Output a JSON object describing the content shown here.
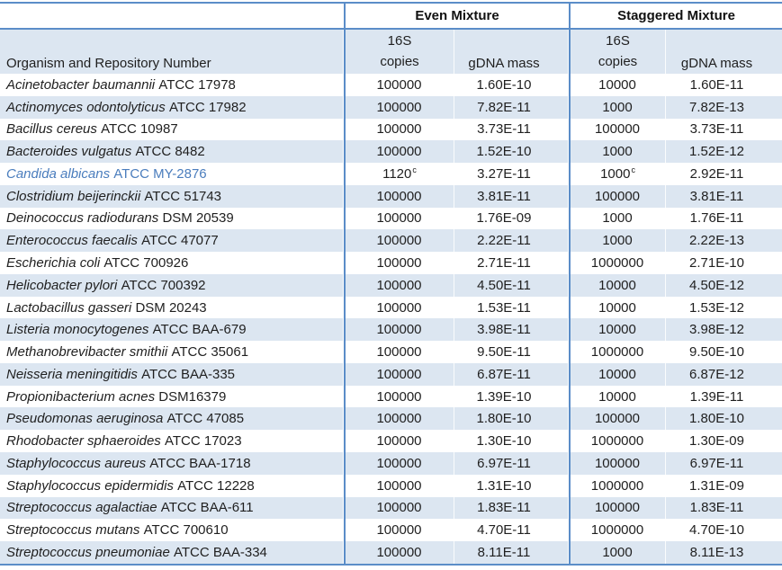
{
  "colors": {
    "border_blue": "#5b8dc8",
    "shaded_row": "#dce6f1",
    "highlight_text_blue": "#4a7dbd",
    "text": "#1f1f1f"
  },
  "table": {
    "group_headers": {
      "even": "Even Mixture",
      "staggered": "Staggered Mixture"
    },
    "column_headers": {
      "organism": "Organism and Repository Number",
      "copies_top": "16S",
      "copies_bottom": "copies",
      "gdna_mass": "gDNA mass"
    },
    "rows": [
      {
        "name_italic": "Acinetobacter baumannii",
        "name_rest": "ATCC 17978",
        "even_copies": "100000",
        "even_sup": "",
        "even_gdna": "1.60E-10",
        "stag_copies": "10000",
        "stag_sup": "",
        "stag_gdna": "1.60E-11",
        "blue": false
      },
      {
        "name_italic": "Actinomyces odontolyticus",
        "name_rest": "ATCC 17982",
        "even_copies": "100000",
        "even_sup": "",
        "even_gdna": "7.82E-11",
        "stag_copies": "1000",
        "stag_sup": "",
        "stag_gdna": "7.82E-13",
        "blue": false
      },
      {
        "name_italic": "Bacillus cereus",
        "name_rest": "ATCC 10987",
        "even_copies": "100000",
        "even_sup": "",
        "even_gdna": "3.73E-11",
        "stag_copies": "100000",
        "stag_sup": "",
        "stag_gdna": "3.73E-11",
        "blue": false
      },
      {
        "name_italic": "Bacteroides vulgatus",
        "name_rest": "ATCC 8482",
        "even_copies": "100000",
        "even_sup": "",
        "even_gdna": "1.52E-10",
        "stag_copies": "1000",
        "stag_sup": "",
        "stag_gdna": "1.52E-12",
        "blue": false
      },
      {
        "name_italic": "Candida albicans",
        "name_rest": "ATCC MY-2876",
        "even_copies": "1120",
        "even_sup": "c",
        "even_gdna": "3.27E-11",
        "stag_copies": "1000",
        "stag_sup": "c",
        "stag_gdna": "2.92E-11",
        "blue": true
      },
      {
        "name_italic": "Clostridium beijerinckii",
        "name_rest": "ATCC 51743",
        "even_copies": "100000",
        "even_sup": "",
        "even_gdna": "3.81E-11",
        "stag_copies": "100000",
        "stag_sup": "",
        "stag_gdna": "3.81E-11",
        "blue": false
      },
      {
        "name_italic": "Deinococcus radiodurans",
        "name_rest": "DSM 20539",
        "even_copies": "100000",
        "even_sup": "",
        "even_gdna": "1.76E-09",
        "stag_copies": "1000",
        "stag_sup": "",
        "stag_gdna": "1.76E-11",
        "blue": false
      },
      {
        "name_italic": "Enterococcus faecalis",
        "name_rest": "ATCC 47077",
        "even_copies": "100000",
        "even_sup": "",
        "even_gdna": "2.22E-11",
        "stag_copies": "1000",
        "stag_sup": "",
        "stag_gdna": "2.22E-13",
        "blue": false
      },
      {
        "name_italic": "Escherichia coli",
        "name_rest": "ATCC 700926",
        "even_copies": "100000",
        "even_sup": "",
        "even_gdna": "2.71E-11",
        "stag_copies": "1000000",
        "stag_sup": "",
        "stag_gdna": "2.71E-10",
        "blue": false
      },
      {
        "name_italic": "Helicobacter pylori",
        "name_rest": "ATCC 700392",
        "even_copies": "100000",
        "even_sup": "",
        "even_gdna": "4.50E-11",
        "stag_copies": "10000",
        "stag_sup": "",
        "stag_gdna": "4.50E-12",
        "blue": false
      },
      {
        "name_italic": "Lactobacillus gasseri",
        "name_rest": "DSM 20243",
        "even_copies": "100000",
        "even_sup": "",
        "even_gdna": "1.53E-11",
        "stag_copies": "10000",
        "stag_sup": "",
        "stag_gdna": "1.53E-12",
        "blue": false
      },
      {
        "name_italic": "Listeria monocytogenes",
        "name_rest": "ATCC BAA-679",
        "even_copies": "100000",
        "even_sup": "",
        "even_gdna": "3.98E-11",
        "stag_copies": "10000",
        "stag_sup": "",
        "stag_gdna": "3.98E-12",
        "blue": false
      },
      {
        "name_italic": "Methanobrevibacter smithii",
        "name_rest": "ATCC 35061",
        "even_copies": "100000",
        "even_sup": "",
        "even_gdna": "9.50E-11",
        "stag_copies": "1000000",
        "stag_sup": "",
        "stag_gdna": "9.50E-10",
        "blue": false
      },
      {
        "name_italic": "Neisseria meningitidis",
        "name_rest": "ATCC BAA-335",
        "even_copies": "100000",
        "even_sup": "",
        "even_gdna": "6.87E-11",
        "stag_copies": "10000",
        "stag_sup": "",
        "stag_gdna": "6.87E-12",
        "blue": false
      },
      {
        "name_italic": "Propionibacterium acnes",
        "name_rest": "DSM16379",
        "even_copies": "100000",
        "even_sup": "",
        "even_gdna": "1.39E-10",
        "stag_copies": "10000",
        "stag_sup": "",
        "stag_gdna": "1.39E-11",
        "blue": false
      },
      {
        "name_italic": "Pseudomonas aeruginosa",
        "name_rest": "ATCC 47085",
        "even_copies": "100000",
        "even_sup": "",
        "even_gdna": "1.80E-10",
        "stag_copies": "100000",
        "stag_sup": "",
        "stag_gdna": "1.80E-10",
        "blue": false
      },
      {
        "name_italic": "Rhodobacter sphaeroides",
        "name_rest": "ATCC 17023",
        "even_copies": "100000",
        "even_sup": "",
        "even_gdna": "1.30E-10",
        "stag_copies": "1000000",
        "stag_sup": "",
        "stag_gdna": "1.30E-09",
        "blue": false
      },
      {
        "name_italic": "Staphylococcus aureus",
        "name_rest": "ATCC BAA-1718",
        "even_copies": "100000",
        "even_sup": "",
        "even_gdna": "6.97E-11",
        "stag_copies": "100000",
        "stag_sup": "",
        "stag_gdna": "6.97E-11",
        "blue": false
      },
      {
        "name_italic": "Staphylococcus epidermidis",
        "name_rest": "ATCC 12228",
        "even_copies": "100000",
        "even_sup": "",
        "even_gdna": "1.31E-10",
        "stag_copies": "1000000",
        "stag_sup": "",
        "stag_gdna": "1.31E-09",
        "blue": false
      },
      {
        "name_italic": "Streptococcus agalactiae",
        "name_rest": "ATCC BAA-611",
        "even_copies": "100000",
        "even_sup": "",
        "even_gdna": "1.83E-11",
        "stag_copies": "100000",
        "stag_sup": "",
        "stag_gdna": "1.83E-11",
        "blue": false
      },
      {
        "name_italic": "Streptococcus mutans",
        "name_rest": "ATCC 700610",
        "even_copies": "100000",
        "even_sup": "",
        "even_gdna": "4.70E-11",
        "stag_copies": "1000000",
        "stag_sup": "",
        "stag_gdna": "4.70E-10",
        "blue": false
      },
      {
        "name_italic": "Streptococcus pneumoniae",
        "name_rest": "ATCC BAA-334",
        "even_copies": "100000",
        "even_sup": "",
        "even_gdna": "8.11E-11",
        "stag_copies": "1000",
        "stag_sup": "",
        "stag_gdna": "8.11E-13",
        "blue": false
      }
    ]
  }
}
